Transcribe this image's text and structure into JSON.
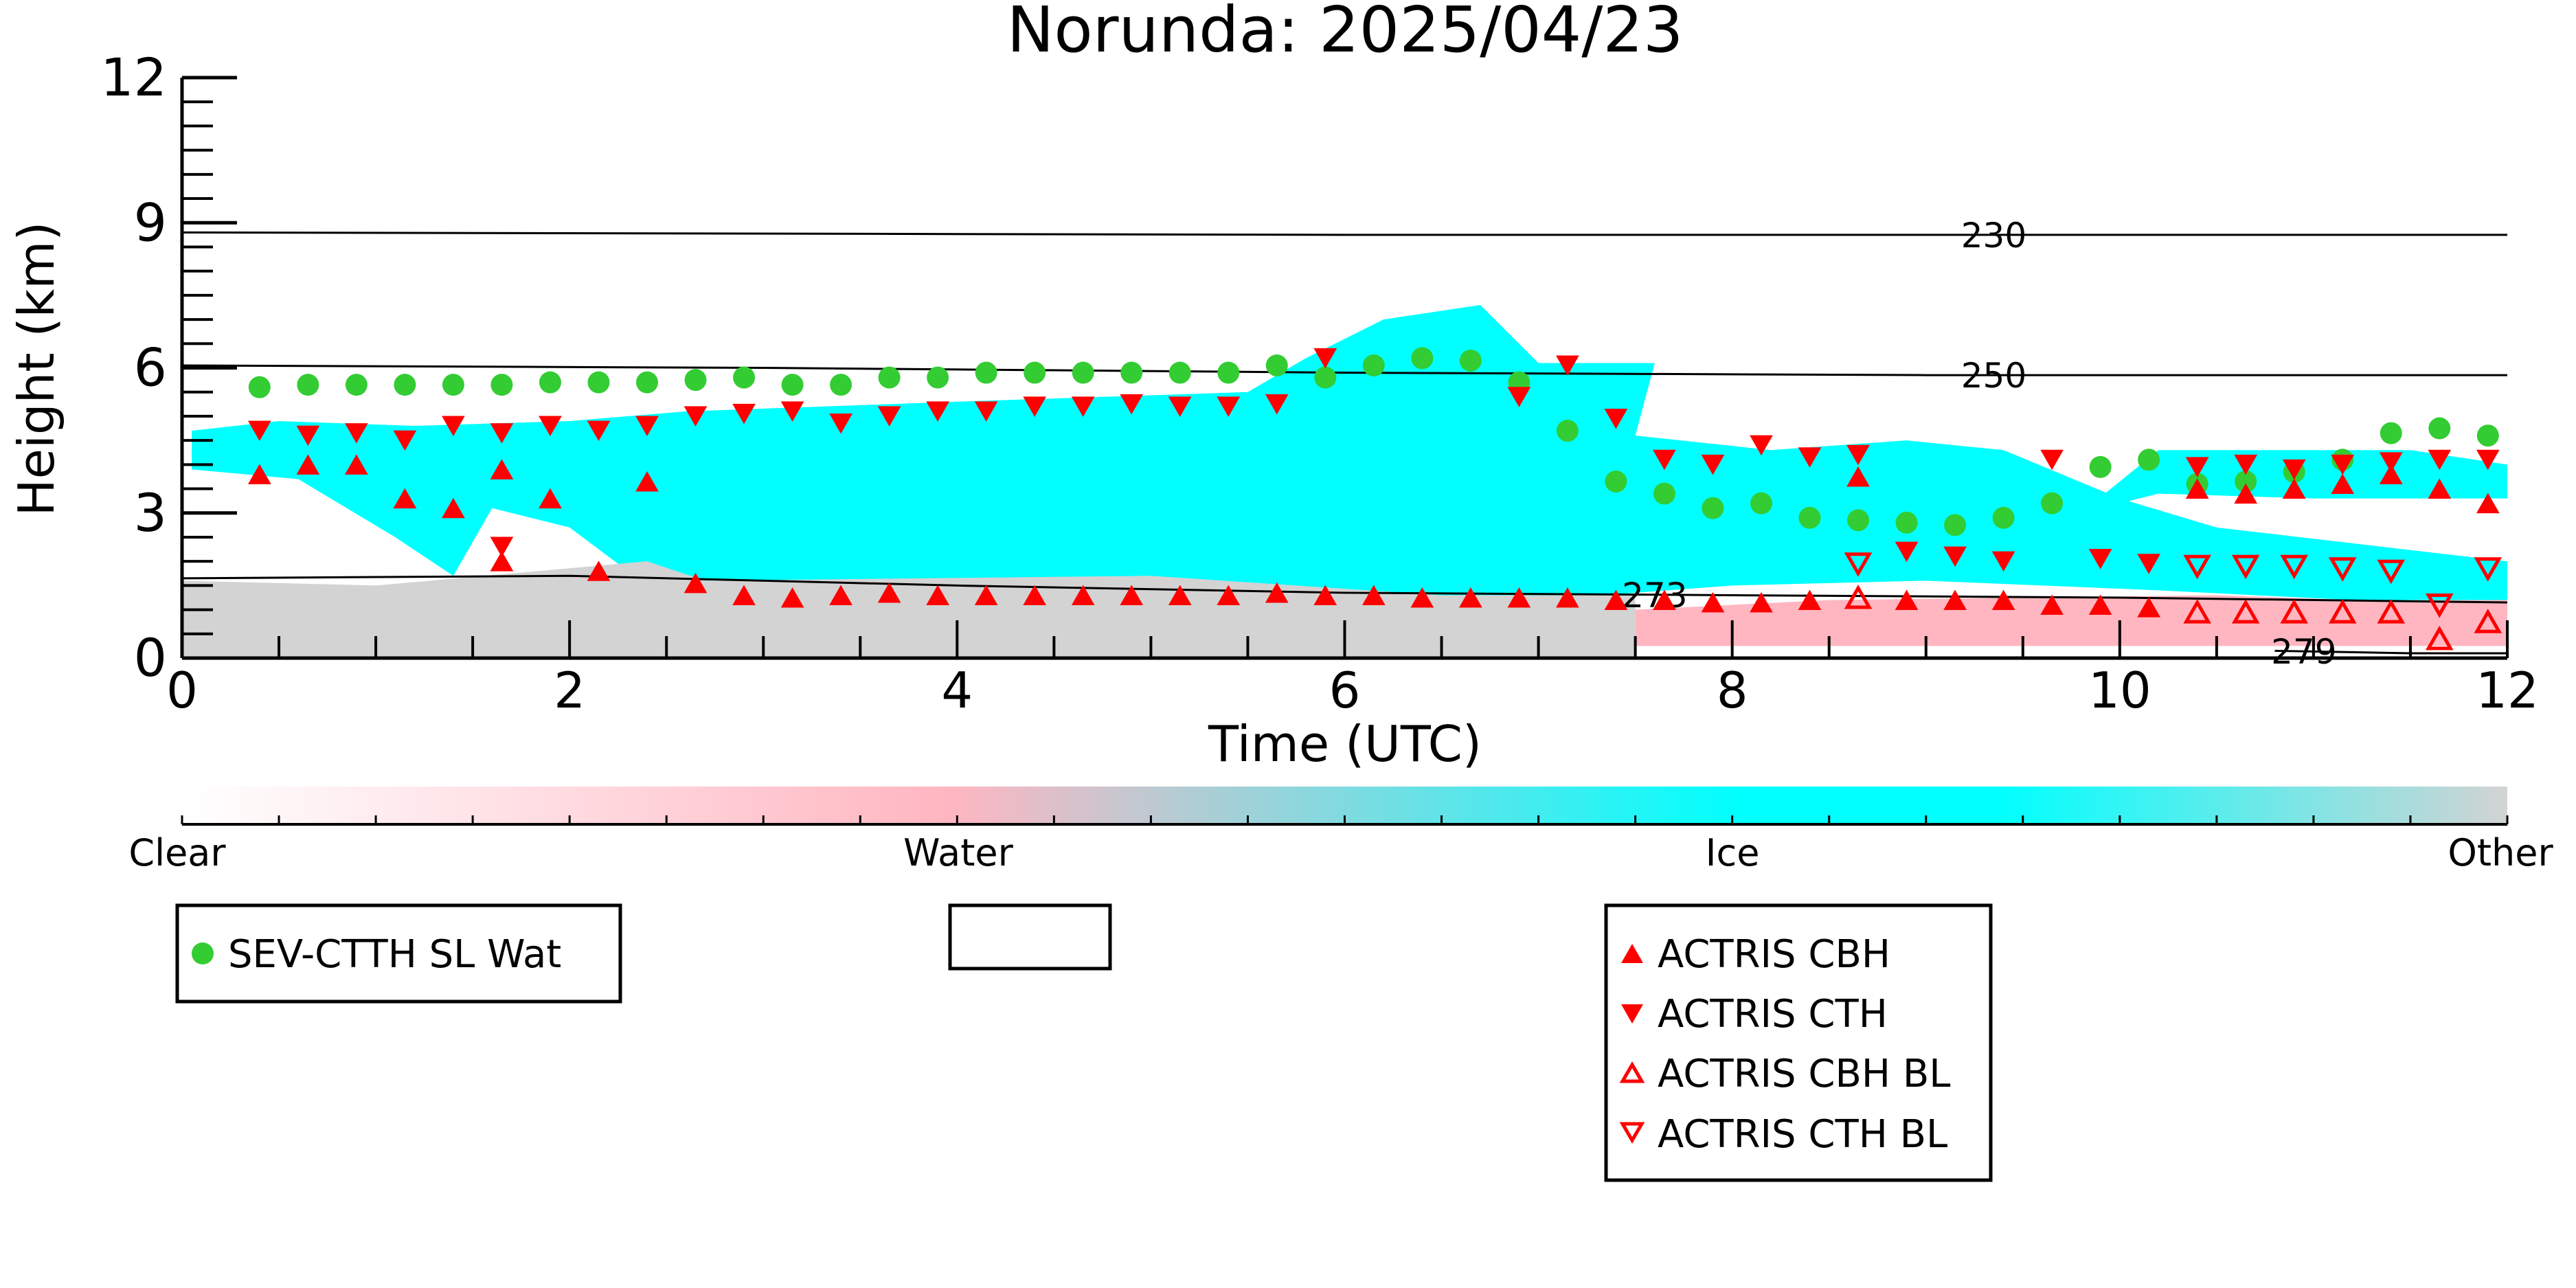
{
  "chart_data": {
    "type": "scatter",
    "title": "Norunda: 2025/04/23",
    "xlabel": "Time (UTC)",
    "ylabel": "Height (km)",
    "xlim": [
      0,
      12
    ],
    "ylim": [
      0,
      12
    ],
    "x_ticks": [
      "0",
      "2",
      "4",
      "6",
      "8",
      "10",
      "12"
    ],
    "y_ticks": [
      "0",
      "3",
      "6",
      "9",
      "12"
    ],
    "grid": false,
    "contours": [
      {
        "label": "230",
        "points": [
          [
            0,
            8.8
          ],
          [
            6,
            8.75
          ],
          [
            12,
            8.75
          ]
        ],
        "label_x": 9.35
      },
      {
        "label": "250",
        "points": [
          [
            0,
            6.05
          ],
          [
            3,
            6.0
          ],
          [
            6,
            5.9
          ],
          [
            9,
            5.85
          ],
          [
            12,
            5.85
          ]
        ],
        "label_x": 9.35
      },
      {
        "label": "273",
        "points": [
          [
            0,
            1.65
          ],
          [
            2,
            1.7
          ],
          [
            4,
            1.5
          ],
          [
            6,
            1.35
          ],
          [
            8,
            1.3
          ],
          [
            10,
            1.25
          ],
          [
            12,
            1.15
          ]
        ],
        "label_x": 7.6
      },
      {
        "label": "279",
        "points": [
          [
            10.8,
            0.15
          ],
          [
            11.5,
            0.1
          ],
          [
            12,
            0.1
          ]
        ],
        "label_x": 10.95
      }
    ],
    "colorbar": {
      "labels": [
        "Clear",
        "Water",
        "Ice",
        "Other"
      ],
      "colors": {
        "clear": "#ffffff",
        "water": "#ffb6c1",
        "ice": "#00ffff",
        "other": "#d3d3d3"
      }
    },
    "classification_regions": [
      {
        "class": "Ice",
        "polygon": [
          [
            0.05,
            4.7
          ],
          [
            0.5,
            4.9
          ],
          [
            1.2,
            4.8
          ],
          [
            2.0,
            4.9
          ],
          [
            2.6,
            5.1
          ],
          [
            4.0,
            5.3
          ],
          [
            5.5,
            5.5
          ],
          [
            5.8,
            6.2
          ],
          [
            6.2,
            7.0
          ],
          [
            6.7,
            7.3
          ],
          [
            7.0,
            6.1
          ],
          [
            7.6,
            6.1
          ],
          [
            7.5,
            4.6
          ],
          [
            8.2,
            4.3
          ],
          [
            8.9,
            4.5
          ],
          [
            9.4,
            4.3
          ],
          [
            10.0,
            3.3
          ],
          [
            10.5,
            2.7
          ],
          [
            12.0,
            2.0
          ],
          [
            12.0,
            1.2
          ],
          [
            11.2,
            1.2
          ],
          [
            10.2,
            1.4
          ],
          [
            9.0,
            1.6
          ],
          [
            8.0,
            1.5
          ],
          [
            7.0,
            1.2
          ],
          [
            6.0,
            1.2
          ],
          [
            4.9,
            1.6
          ],
          [
            4.0,
            1.6
          ],
          [
            2.6,
            1.6
          ],
          [
            2.3,
            1.8
          ],
          [
            2.0,
            2.7
          ],
          [
            1.6,
            3.1
          ],
          [
            1.4,
            1.7
          ],
          [
            1.1,
            2.5
          ],
          [
            0.6,
            3.7
          ],
          [
            0.05,
            3.9
          ]
        ]
      },
      {
        "class": "Ice",
        "polygon": [
          [
            9.8,
            3.0
          ],
          [
            10.2,
            4.3
          ],
          [
            11.5,
            4.3
          ],
          [
            12.0,
            4.0
          ],
          [
            12.0,
            3.3
          ],
          [
            11.0,
            3.3
          ],
          [
            10.2,
            3.4
          ]
        ]
      },
      {
        "class": "Other",
        "polygon": [
          [
            0,
            1.6
          ],
          [
            1.0,
            1.5
          ],
          [
            2.4,
            2.0
          ],
          [
            2.7,
            1.6
          ],
          [
            5.0,
            1.7
          ],
          [
            6.5,
            1.3
          ],
          [
            7.5,
            1.3
          ],
          [
            7.5,
            0
          ],
          [
            0,
            0
          ]
        ]
      },
      {
        "class": "Water",
        "polygon": [
          [
            7.5,
            1.0
          ],
          [
            8.5,
            1.2
          ],
          [
            10.5,
            1.3
          ],
          [
            11.2,
            1.2
          ],
          [
            12.0,
            1.2
          ],
          [
            12.0,
            0.25
          ],
          [
            7.5,
            0.25
          ]
        ]
      }
    ],
    "series": [
      {
        "name": "SEV-CTTH SL Wat",
        "marker": "circle",
        "color": "#33cc33",
        "points": [
          [
            0.4,
            5.6
          ],
          [
            0.65,
            5.65
          ],
          [
            0.9,
            5.65
          ],
          [
            1.15,
            5.65
          ],
          [
            1.4,
            5.65
          ],
          [
            1.65,
            5.65
          ],
          [
            1.9,
            5.7
          ],
          [
            2.15,
            5.7
          ],
          [
            2.4,
            5.7
          ],
          [
            2.65,
            5.75
          ],
          [
            2.9,
            5.8
          ],
          [
            3.15,
            5.65
          ],
          [
            3.4,
            5.65
          ],
          [
            3.65,
            5.8
          ],
          [
            3.9,
            5.8
          ],
          [
            4.15,
            5.9
          ],
          [
            4.4,
            5.9
          ],
          [
            4.65,
            5.9
          ],
          [
            4.9,
            5.9
          ],
          [
            5.15,
            5.9
          ],
          [
            5.4,
            5.9
          ],
          [
            5.65,
            6.05
          ],
          [
            5.9,
            5.8
          ],
          [
            6.15,
            6.05
          ],
          [
            6.4,
            6.2
          ],
          [
            6.65,
            6.15
          ],
          [
            6.9,
            5.7
          ],
          [
            7.15,
            4.7
          ],
          [
            7.4,
            3.65
          ],
          [
            7.65,
            3.4
          ],
          [
            7.9,
            3.1
          ],
          [
            8.15,
            3.2
          ],
          [
            8.4,
            2.9
          ],
          [
            8.65,
            2.85
          ],
          [
            8.9,
            2.8
          ],
          [
            9.15,
            2.75
          ],
          [
            9.4,
            2.9
          ],
          [
            9.65,
            3.2
          ],
          [
            9.9,
            3.95
          ],
          [
            10.15,
            4.1
          ],
          [
            10.4,
            3.6
          ],
          [
            10.65,
            3.65
          ],
          [
            10.9,
            3.85
          ],
          [
            11.15,
            4.1
          ],
          [
            11.4,
            4.65
          ],
          [
            11.65,
            4.75
          ],
          [
            11.9,
            4.6
          ]
        ]
      },
      {
        "name": "ACTRIS CBH",
        "marker": "triangle-up",
        "filled": true,
        "color": "#ff0000",
        "points": [
          [
            0.4,
            3.8
          ],
          [
            0.65,
            4.0
          ],
          [
            0.9,
            4.0
          ],
          [
            1.15,
            3.3
          ],
          [
            1.4,
            3.1
          ],
          [
            1.65,
            3.9
          ],
          [
            1.65,
            2.0
          ],
          [
            1.9,
            3.3
          ],
          [
            2.15,
            1.8
          ],
          [
            2.4,
            3.65
          ],
          [
            2.65,
            1.55
          ],
          [
            2.9,
            1.3
          ],
          [
            3.15,
            1.25
          ],
          [
            3.4,
            1.3
          ],
          [
            3.65,
            1.35
          ],
          [
            3.9,
            1.3
          ],
          [
            4.15,
            1.3
          ],
          [
            4.4,
            1.3
          ],
          [
            4.65,
            1.3
          ],
          [
            4.9,
            1.3
          ],
          [
            5.15,
            1.3
          ],
          [
            5.4,
            1.3
          ],
          [
            5.65,
            1.35
          ],
          [
            5.9,
            1.3
          ],
          [
            6.15,
            1.3
          ],
          [
            6.4,
            1.25
          ],
          [
            6.65,
            1.25
          ],
          [
            6.9,
            1.25
          ],
          [
            7.15,
            1.25
          ],
          [
            7.4,
            1.2
          ],
          [
            7.65,
            1.2
          ],
          [
            7.9,
            1.15
          ],
          [
            8.15,
            1.15
          ],
          [
            8.4,
            1.2
          ],
          [
            8.65,
            3.75
          ],
          [
            8.9,
            1.2
          ],
          [
            9.15,
            1.2
          ],
          [
            9.4,
            1.2
          ],
          [
            9.65,
            1.1
          ],
          [
            9.9,
            1.1
          ],
          [
            10.15,
            1.05
          ],
          [
            10.4,
            3.5
          ],
          [
            10.65,
            3.4
          ],
          [
            10.9,
            3.5
          ],
          [
            11.15,
            3.6
          ],
          [
            11.4,
            3.8
          ],
          [
            11.65,
            3.5
          ],
          [
            11.9,
            3.2
          ]
        ]
      },
      {
        "name": "ACTRIS CTH",
        "marker": "triangle-down",
        "filled": true,
        "color": "#ff0000",
        "points": [
          [
            0.4,
            4.7
          ],
          [
            0.65,
            4.6
          ],
          [
            0.9,
            4.65
          ],
          [
            1.15,
            4.5
          ],
          [
            1.4,
            4.8
          ],
          [
            1.65,
            4.65
          ],
          [
            1.65,
            2.3
          ],
          [
            1.9,
            4.8
          ],
          [
            2.15,
            4.7
          ],
          [
            2.4,
            4.8
          ],
          [
            2.65,
            5.0
          ],
          [
            2.9,
            5.05
          ],
          [
            3.15,
            5.1
          ],
          [
            3.4,
            4.85
          ],
          [
            3.65,
            5.0
          ],
          [
            3.9,
            5.1
          ],
          [
            4.15,
            5.1
          ],
          [
            4.4,
            5.2
          ],
          [
            4.65,
            5.2
          ],
          [
            4.9,
            5.25
          ],
          [
            5.15,
            5.2
          ],
          [
            5.4,
            5.2
          ],
          [
            5.65,
            5.25
          ],
          [
            5.9,
            6.2
          ],
          [
            6.9,
            5.4
          ],
          [
            7.15,
            6.05
          ],
          [
            7.4,
            4.95
          ],
          [
            7.65,
            4.1
          ],
          [
            7.9,
            4.0
          ],
          [
            8.15,
            4.4
          ],
          [
            8.4,
            4.15
          ],
          [
            8.65,
            4.2
          ],
          [
            8.9,
            2.2
          ],
          [
            9.15,
            2.1
          ],
          [
            9.4,
            2.0
          ],
          [
            9.65,
            4.1
          ],
          [
            9.9,
            2.05
          ],
          [
            10.15,
            1.95
          ],
          [
            10.4,
            3.95
          ],
          [
            10.65,
            4.0
          ],
          [
            10.9,
            3.9
          ],
          [
            11.15,
            4.0
          ],
          [
            11.4,
            4.05
          ],
          [
            11.65,
            4.1
          ],
          [
            11.9,
            4.1
          ]
        ]
      },
      {
        "name": "ACTRIS CBH BL",
        "marker": "triangle-up",
        "filled": false,
        "color": "#ff0000",
        "points": [
          [
            8.65,
            1.25
          ],
          [
            10.4,
            0.95
          ],
          [
            10.65,
            0.95
          ],
          [
            10.9,
            0.95
          ],
          [
            11.15,
            0.95
          ],
          [
            11.4,
            0.95
          ],
          [
            11.65,
            0.4
          ],
          [
            11.9,
            0.75
          ]
        ]
      },
      {
        "name": "ACTRIS CTH BL",
        "marker": "triangle-down",
        "filled": false,
        "color": "#ff0000",
        "points": [
          [
            8.65,
            1.95
          ],
          [
            10.4,
            1.9
          ],
          [
            10.65,
            1.9
          ],
          [
            10.9,
            1.9
          ],
          [
            11.15,
            1.85
          ],
          [
            11.4,
            1.8
          ],
          [
            11.65,
            1.1
          ],
          [
            11.9,
            1.85
          ]
        ]
      }
    ],
    "legend": {
      "placement": "bottom",
      "boxes": [
        {
          "entries": [
            "SEV-CTTH SL Wat"
          ]
        },
        {
          "entries": []
        },
        {
          "entries": [
            "ACTRIS CBH",
            "ACTRIS CTH",
            "ACTRIS CBH BL",
            "ACTRIS CTH BL"
          ]
        }
      ]
    }
  }
}
